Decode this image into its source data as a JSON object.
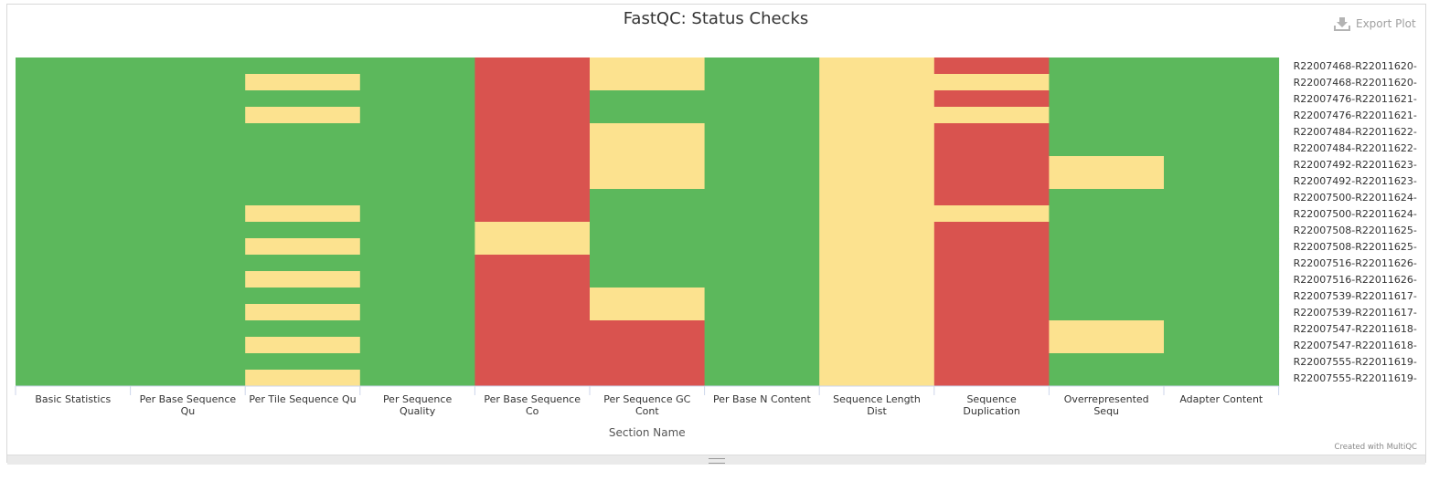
{
  "title": "FastQC: Status Checks",
  "export_label": "Export Plot",
  "credit": "Created with MultiQC",
  "status_colors": {
    "pass": "#5cb85c",
    "warn": "#fce28f",
    "fail": "#d9534f"
  },
  "chart_data": {
    "type": "heatmap",
    "title": "FastQC: Status Checks",
    "xlabel": "Section Name",
    "ylabel": "",
    "x_categories": [
      "Basic Statistics",
      "Per Base Sequence Qu",
      "Per Tile Sequence Qu",
      "Per Sequence Quality",
      "Per Base Sequence Co",
      "Per Sequence GC Cont",
      "Per Base N Content",
      "Sequence Length Dist",
      "Sequence Duplication",
      "Overrepresented Sequ",
      "Adapter Content"
    ],
    "y_categories": [
      "R22007468-R22011620-",
      "R22007468-R22011620-",
      "R22007476-R22011621-",
      "R22007476-R22011621-",
      "R22007484-R22011622-",
      "R22007484-R22011622-",
      "R22007492-R22011623-",
      "R22007492-R22011623-",
      "R22007500-R22011624-",
      "R22007500-R22011624-",
      "R22007508-R22011625-",
      "R22007508-R22011625-",
      "R22007516-R22011626-",
      "R22007516-R22011626-",
      "R22007539-R22011617-",
      "R22007539-R22011617-",
      "R22007547-R22011618-",
      "R22007547-R22011618-",
      "R22007555-R22011619-",
      "R22007555-R22011619-"
    ],
    "values": [
      [
        "pass",
        "pass",
        "pass",
        "pass",
        "fail",
        "warn",
        "pass",
        "warn",
        "fail",
        "pass",
        "pass"
      ],
      [
        "pass",
        "pass",
        "warn",
        "pass",
        "fail",
        "warn",
        "pass",
        "warn",
        "warn",
        "pass",
        "pass"
      ],
      [
        "pass",
        "pass",
        "pass",
        "pass",
        "fail",
        "pass",
        "pass",
        "warn",
        "fail",
        "pass",
        "pass"
      ],
      [
        "pass",
        "pass",
        "warn",
        "pass",
        "fail",
        "pass",
        "pass",
        "warn",
        "warn",
        "pass",
        "pass"
      ],
      [
        "pass",
        "pass",
        "pass",
        "pass",
        "fail",
        "warn",
        "pass",
        "warn",
        "fail",
        "pass",
        "pass"
      ],
      [
        "pass",
        "pass",
        "pass",
        "pass",
        "fail",
        "warn",
        "pass",
        "warn",
        "fail",
        "pass",
        "pass"
      ],
      [
        "pass",
        "pass",
        "pass",
        "pass",
        "fail",
        "warn",
        "pass",
        "warn",
        "fail",
        "warn",
        "pass"
      ],
      [
        "pass",
        "pass",
        "pass",
        "pass",
        "fail",
        "warn",
        "pass",
        "warn",
        "fail",
        "warn",
        "pass"
      ],
      [
        "pass",
        "pass",
        "pass",
        "pass",
        "fail",
        "pass",
        "pass",
        "warn",
        "fail",
        "pass",
        "pass"
      ],
      [
        "pass",
        "pass",
        "warn",
        "pass",
        "fail",
        "pass",
        "pass",
        "warn",
        "warn",
        "pass",
        "pass"
      ],
      [
        "pass",
        "pass",
        "pass",
        "pass",
        "warn",
        "pass",
        "pass",
        "warn",
        "fail",
        "pass",
        "pass"
      ],
      [
        "pass",
        "pass",
        "warn",
        "pass",
        "warn",
        "pass",
        "pass",
        "warn",
        "fail",
        "pass",
        "pass"
      ],
      [
        "pass",
        "pass",
        "pass",
        "pass",
        "fail",
        "pass",
        "pass",
        "warn",
        "fail",
        "pass",
        "pass"
      ],
      [
        "pass",
        "pass",
        "warn",
        "pass",
        "fail",
        "pass",
        "pass",
        "warn",
        "fail",
        "pass",
        "pass"
      ],
      [
        "pass",
        "pass",
        "pass",
        "pass",
        "fail",
        "warn",
        "pass",
        "warn",
        "fail",
        "pass",
        "pass"
      ],
      [
        "pass",
        "pass",
        "warn",
        "pass",
        "fail",
        "warn",
        "pass",
        "warn",
        "fail",
        "pass",
        "pass"
      ],
      [
        "pass",
        "pass",
        "pass",
        "pass",
        "fail",
        "fail",
        "pass",
        "warn",
        "fail",
        "warn",
        "pass"
      ],
      [
        "pass",
        "pass",
        "warn",
        "pass",
        "fail",
        "fail",
        "pass",
        "warn",
        "fail",
        "warn",
        "pass"
      ],
      [
        "pass",
        "pass",
        "pass",
        "pass",
        "fail",
        "fail",
        "pass",
        "warn",
        "fail",
        "pass",
        "pass"
      ],
      [
        "pass",
        "pass",
        "warn",
        "pass",
        "fail",
        "fail",
        "pass",
        "warn",
        "fail",
        "pass",
        "pass"
      ]
    ]
  }
}
